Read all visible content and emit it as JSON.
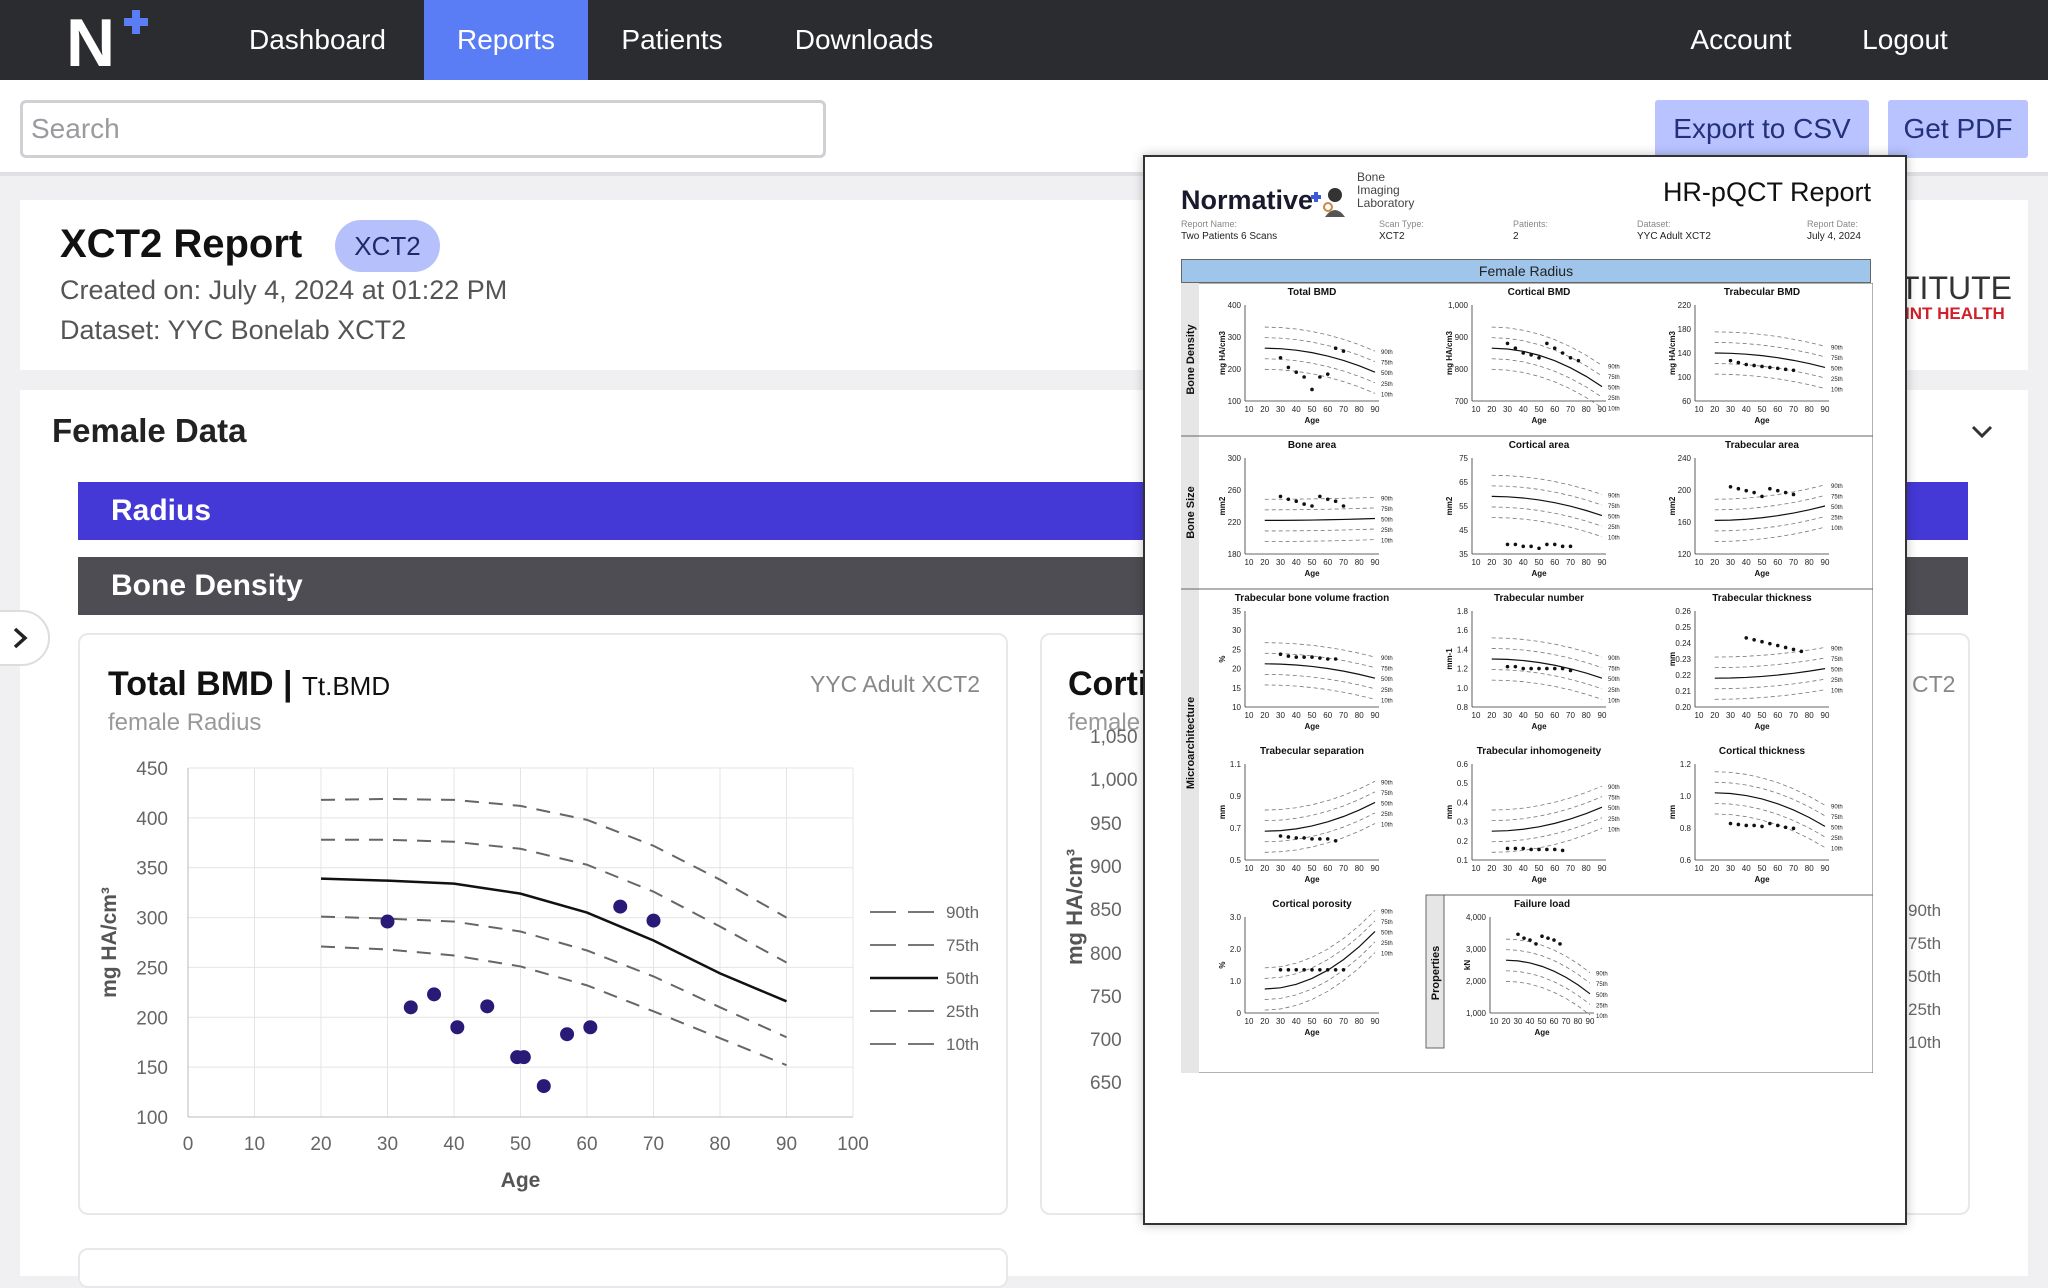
{
  "nav": {
    "logo_letter": "N",
    "items": [
      {
        "label": "Dashboard"
      },
      {
        "label": "Reports"
      },
      {
        "label": "Patients"
      },
      {
        "label": "Downloads"
      }
    ],
    "account": "Account",
    "logout": "Logout"
  },
  "toolbar": {
    "search_placeholder": "Search",
    "export_csv": "Export to CSV",
    "get_pdf": "Get PDF"
  },
  "report": {
    "title": "XCT2 Report",
    "badge": "XCT2",
    "created": "Created on: July 4, 2024 at 01:22 PM",
    "dataset": "Dataset: YYC Bonelab XCT2",
    "institute_line1": "TITUTE",
    "institute_line2": "INT HEALTH"
  },
  "section": {
    "title": "Female Data",
    "radius": "Radius",
    "bone_density": "Bone Density"
  },
  "card1": {
    "title": "Total BMD",
    "sep": "|",
    "abbr": "Tt.BMD",
    "dataset": "YYC Adult XCT2",
    "subtitle": "female Radius"
  },
  "card2": {
    "title": "Corti",
    "subtitle": "female",
    "dataset_fragment": "CT2",
    "ylabel": "mg HA/cm³",
    "yticks": [
      "1,050",
      "1,000",
      "950",
      "900",
      "850",
      "800",
      "750",
      "700",
      "650"
    ],
    "legend": [
      "90th",
      "75th",
      "50th",
      "25th",
      "10th"
    ]
  },
  "chart_data": {
    "type": "scatter",
    "ylabel": "mg HA/cm³",
    "xlabel": "Age",
    "xlim": [
      0,
      100
    ],
    "ylim": [
      100,
      450
    ],
    "xticks": [
      0,
      10,
      20,
      30,
      40,
      50,
      60,
      70,
      80,
      90,
      100
    ],
    "yticks": [
      100,
      150,
      200,
      250,
      300,
      350,
      400,
      450
    ],
    "legend": [
      "90th",
      "75th",
      "50th",
      "25th",
      "10th"
    ],
    "curves_x": [
      20,
      30,
      40,
      50,
      60,
      70,
      80,
      90
    ],
    "series": [
      {
        "name": "90th",
        "values": [
          418,
          419,
          418,
          412,
          398,
          372,
          338,
          300
        ]
      },
      {
        "name": "75th",
        "values": [
          378,
          378,
          376,
          369,
          353,
          326,
          291,
          255
        ]
      },
      {
        "name": "50th",
        "values": [
          339,
          337,
          334,
          324,
          305,
          277,
          244,
          216
        ]
      },
      {
        "name": "25th",
        "values": [
          301,
          299,
          296,
          286,
          267,
          241,
          210,
          180
        ]
      },
      {
        "name": "10th",
        "values": [
          271,
          268,
          262,
          251,
          232,
          206,
          179,
          152
        ]
      }
    ],
    "points": [
      {
        "x": 30,
        "y": 296
      },
      {
        "x": 33.5,
        "y": 210
      },
      {
        "x": 37,
        "y": 223
      },
      {
        "x": 40.5,
        "y": 190
      },
      {
        "x": 45,
        "y": 211
      },
      {
        "x": 49.5,
        "y": 160
      },
      {
        "x": 50.5,
        "y": 160
      },
      {
        "x": 53.5,
        "y": 131
      },
      {
        "x": 57,
        "y": 183
      },
      {
        "x": 60.5,
        "y": 190
      },
      {
        "x": 65,
        "y": 311
      },
      {
        "x": 70,
        "y": 297
      }
    ]
  },
  "pdf": {
    "brand": "Normative",
    "lab": [
      "Bone",
      "Imaging",
      "Laboratory"
    ],
    "title": "HR-pQCT Report",
    "fields": [
      {
        "label": "Report Name:",
        "value": "Two Patients 6 Scans"
      },
      {
        "label": "Scan Type:",
        "value": "XCT2"
      },
      {
        "label": "Patients:",
        "value": "2"
      },
      {
        "label": "Dataset:",
        "value": "YYC Adult XCT2"
      },
      {
        "label": "Report Date:",
        "value": "July 4, 2024"
      }
    ],
    "section": "Female Radius",
    "row_labels": [
      "Bone Density",
      "Bone Size",
      "Microarchitecture",
      "Properties"
    ],
    "unit_label": "kN",
    "xlabel": "Age",
    "xticks": [
      "10",
      "20",
      "30",
      "40",
      "50",
      "60",
      "70",
      "80",
      "90"
    ],
    "panels": [
      {
        "title": "Total BMD",
        "unit": "mg HA/cm3",
        "yticks": [
          "400",
          "300",
          "200",
          "100"
        ]
      },
      {
        "title": "Cortical BMD",
        "unit": "mg HA/cm3",
        "yticks": [
          "1,000",
          "900",
          "800",
          "700"
        ]
      },
      {
        "title": "Trabecular BMD",
        "unit": "mg HA/cm3",
        "yticks": [
          "220",
          "180",
          "140",
          "100",
          "60"
        ]
      },
      {
        "title": "Bone area",
        "unit": "mm2",
        "yticks": [
          "300",
          "260",
          "220",
          "180"
        ]
      },
      {
        "title": "Cortical area",
        "unit": "mm2",
        "yticks": [
          "75",
          "65",
          "55",
          "45",
          "35"
        ]
      },
      {
        "title": "Trabecular area",
        "unit": "mm2",
        "yticks": [
          "240",
          "200",
          "160",
          "120"
        ]
      },
      {
        "title": "Trabecular bone volume fraction",
        "unit": "%",
        "yticks": [
          "35",
          "30",
          "25",
          "20",
          "15",
          "10"
        ]
      },
      {
        "title": "Trabecular number",
        "unit": "mm-1",
        "yticks": [
          "1.8",
          "1.6",
          "1.4",
          "1.2",
          "1.0",
          "0.8"
        ]
      },
      {
        "title": "Trabecular thickness",
        "unit": "mm",
        "yticks": [
          "0.26",
          "0.25",
          "0.24",
          "0.23",
          "0.22",
          "0.21",
          "0.20"
        ]
      },
      {
        "title": "Trabecular separation",
        "unit": "mm",
        "yticks": [
          "1.1",
          "0.9",
          "0.7",
          "0.5"
        ]
      },
      {
        "title": "Trabecular inhomogeneity",
        "unit": "mm",
        "yticks": [
          "0.6",
          "0.5",
          "0.4",
          "0.3",
          "0.2",
          "0.1"
        ]
      },
      {
        "title": "Cortical thickness",
        "unit": "mm",
        "yticks": [
          "1.2",
          "1.0",
          "0.8",
          "0.6"
        ]
      },
      {
        "title": "Cortical porosity",
        "unit": "%",
        "yticks": [
          "3.0",
          "2.0",
          "1.0",
          "0"
        ]
      },
      {
        "title": "Failure load",
        "unit": "kN",
        "yticks": [
          "4,000",
          "3,000",
          "2,000",
          "1,000"
        ]
      }
    ],
    "pct": [
      "90th",
      "75th",
      "50th",
      "25th",
      "10th"
    ]
  }
}
